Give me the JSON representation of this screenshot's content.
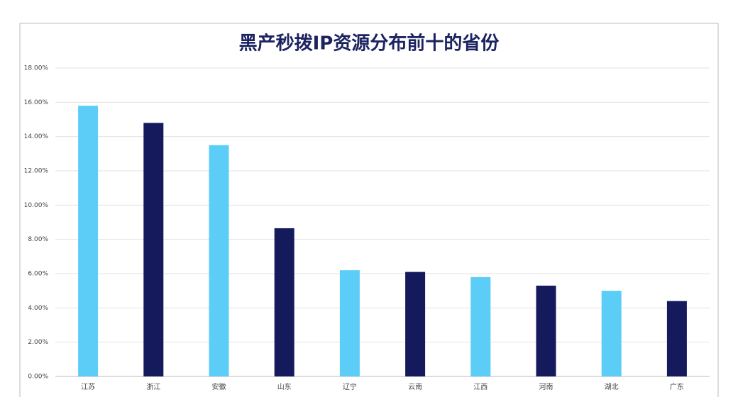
{
  "chart_data": {
    "type": "bar",
    "title": "黑产秒拨IP资源分布前十的省份",
    "categories": [
      "江苏",
      "浙江",
      "安徽",
      "山东",
      "辽宁",
      "云南",
      "江西",
      "河南",
      "湖北",
      "广东"
    ],
    "values": [
      15.8,
      14.8,
      13.5,
      8.65,
      6.2,
      6.1,
      5.8,
      5.3,
      5.0,
      4.4
    ],
    "colors": [
      "#5ccdf7",
      "#141a5c",
      "#5ccdf7",
      "#141a5c",
      "#5ccdf7",
      "#141a5c",
      "#5ccdf7",
      "#141a5c",
      "#5ccdf7",
      "#141a5c"
    ],
    "ylim": [
      0,
      18
    ],
    "yticks": [
      {
        "value": 0,
        "label": "0.00%"
      },
      {
        "value": 2,
        "label": "2.00%"
      },
      {
        "value": 4,
        "label": "4.00%"
      },
      {
        "value": 6,
        "label": "6.00%"
      },
      {
        "value": 8,
        "label": "8.00%"
      },
      {
        "value": 10,
        "label": "10.00%"
      },
      {
        "value": 12,
        "label": "12.00%"
      },
      {
        "value": 14,
        "label": "14.00%"
      },
      {
        "value": 16,
        "label": "16.00%"
      },
      {
        "value": 18,
        "label": "18.00%"
      }
    ],
    "grid": true
  }
}
